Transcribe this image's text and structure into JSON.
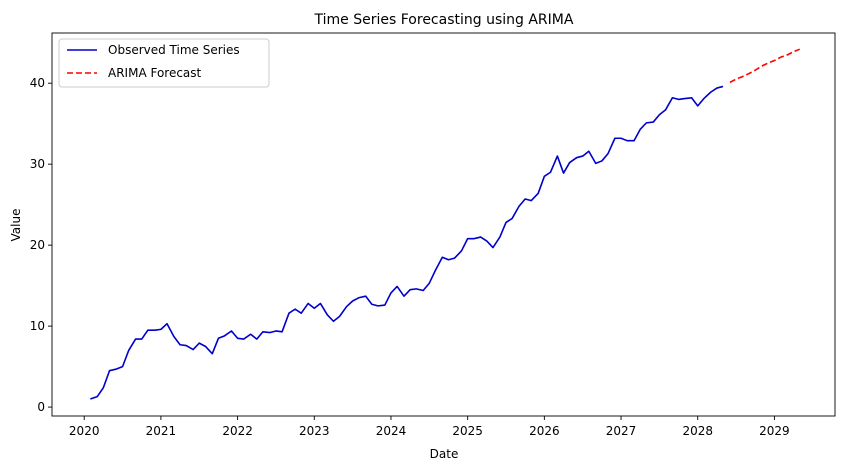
{
  "chart_data": {
    "type": "line",
    "title": "Time Series Forecasting using ARIMA",
    "xlabel": "Date",
    "ylabel": "Value",
    "xlim": [
      2019.58,
      2029.79
    ],
    "ylim": [
      -1.1,
      46.2
    ],
    "x_ticks": [
      2020,
      2021,
      2022,
      2023,
      2024,
      2025,
      2026,
      2027,
      2028,
      2029
    ],
    "y_ticks": [
      0,
      10,
      20,
      30,
      40
    ],
    "grid": false,
    "legend_position": "top-left",
    "series": [
      {
        "name": "Observed Time Series",
        "color": "#0000cc",
        "style": "solid",
        "x": [
          2020.08,
          2020.17,
          2020.25,
          2020.33,
          2020.42,
          2020.5,
          2020.58,
          2020.67,
          2020.75,
          2020.83,
          2020.92,
          2021.0,
          2021.08,
          2021.17,
          2021.25,
          2021.33,
          2021.42,
          2021.5,
          2021.58,
          2021.67,
          2021.75,
          2021.83,
          2021.92,
          2022.0,
          2022.08,
          2022.17,
          2022.25,
          2022.33,
          2022.42,
          2022.5,
          2022.58,
          2022.67,
          2022.75,
          2022.83,
          2022.92,
          2023.0,
          2023.08,
          2023.17,
          2023.25,
          2023.33,
          2023.42,
          2023.5,
          2023.58,
          2023.67,
          2023.75,
          2023.83,
          2023.92,
          2024.0,
          2024.08,
          2024.17,
          2024.25,
          2024.33,
          2024.42,
          2024.5,
          2024.58,
          2024.67,
          2024.75,
          2024.83,
          2024.92,
          2025.0,
          2025.08,
          2025.17,
          2025.25,
          2025.33,
          2025.42,
          2025.5,
          2025.58,
          2025.67,
          2025.75,
          2025.83,
          2025.92,
          2026.0,
          2026.08,
          2026.17,
          2026.25,
          2026.33,
          2026.42,
          2026.5,
          2026.58,
          2026.67,
          2026.75,
          2026.83,
          2026.92,
          2027.0,
          2027.08,
          2027.17,
          2027.25,
          2027.33,
          2027.42,
          2027.5,
          2027.58,
          2027.67,
          2027.75,
          2027.83,
          2027.92,
          2028.0,
          2028.08,
          2028.17,
          2028.25,
          2028.33
        ],
        "y": [
          1.0,
          1.3,
          2.4,
          4.5,
          4.7,
          5.0,
          7.0,
          8.4,
          8.4,
          9.5,
          9.5,
          9.6,
          10.3,
          8.7,
          7.7,
          7.6,
          7.1,
          7.9,
          7.5,
          6.6,
          8.5,
          8.8,
          9.4,
          8.5,
          8.4,
          9.0,
          8.4,
          9.3,
          9.2,
          9.4,
          9.3,
          11.6,
          12.1,
          11.6,
          12.8,
          12.2,
          12.8,
          11.4,
          10.6,
          11.2,
          12.4,
          13.1,
          13.5,
          13.7,
          12.7,
          12.5,
          12.6,
          14.1,
          14.9,
          13.7,
          14.5,
          14.6,
          14.4,
          15.3,
          16.9,
          18.5,
          18.2,
          18.4,
          19.3,
          20.8,
          20.8,
          21.0,
          20.5,
          19.7,
          21.0,
          22.8,
          23.3,
          24.8,
          25.7,
          25.5,
          26.4,
          28.5,
          29.0,
          31.0,
          28.9,
          30.2,
          30.8,
          31.0,
          31.6,
          30.1,
          30.4,
          31.3,
          33.2,
          33.2,
          32.9,
          32.9,
          34.3,
          35.1,
          35.2,
          36.1,
          36.7,
          38.2,
          38.0,
          38.1,
          38.2,
          37.2,
          38.1,
          38.9,
          39.4,
          39.6
        ]
      },
      {
        "name": "ARIMA Forecast",
        "color": "#ff0000",
        "style": "dashed",
        "x": [
          2028.42,
          2028.5,
          2028.58,
          2028.67,
          2028.75,
          2028.83,
          2028.92,
          2029.0,
          2029.08,
          2029.17,
          2029.25,
          2029.33
        ],
        "y": [
          40.1,
          40.5,
          40.8,
          41.2,
          41.6,
          42.1,
          42.5,
          42.8,
          43.2,
          43.5,
          43.9,
          44.2
        ]
      }
    ]
  }
}
